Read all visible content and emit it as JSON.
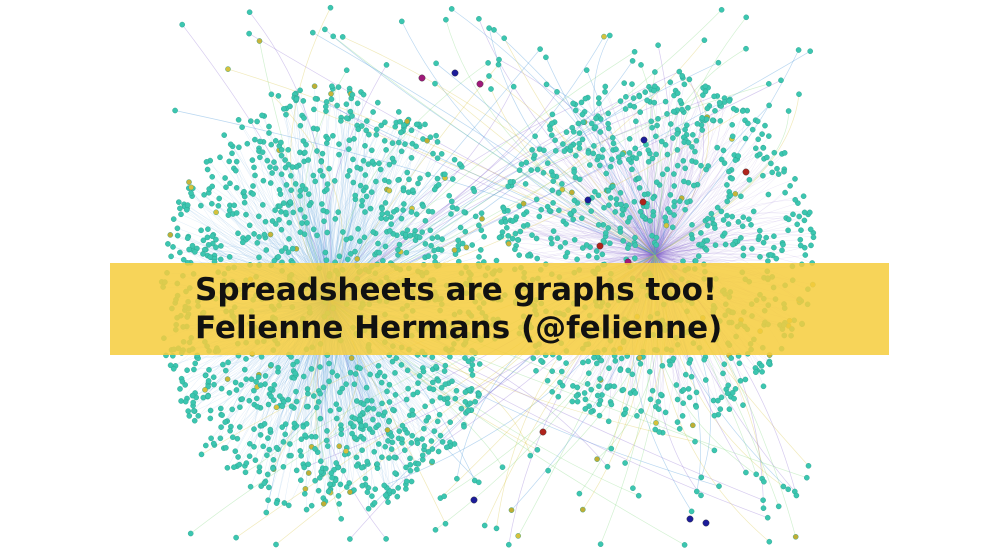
{
  "slide": {
    "title": "Spreadsheets are graphs too!",
    "subtitle": "Felienne Hermans (@felienne)"
  },
  "colors": {
    "background": "#ffffff",
    "banner": "#f6cd3e",
    "node_primary": "#3cc6b0",
    "edge_blue": "#3d8fd6",
    "edge_purple": "#8a6bd0",
    "edge_green": "#7fd67a",
    "edge_yellow": "#d8c43c",
    "hub_magenta": "#a0197a",
    "hub_navy": "#1c1c9a",
    "hub_red": "#b0241c"
  }
}
